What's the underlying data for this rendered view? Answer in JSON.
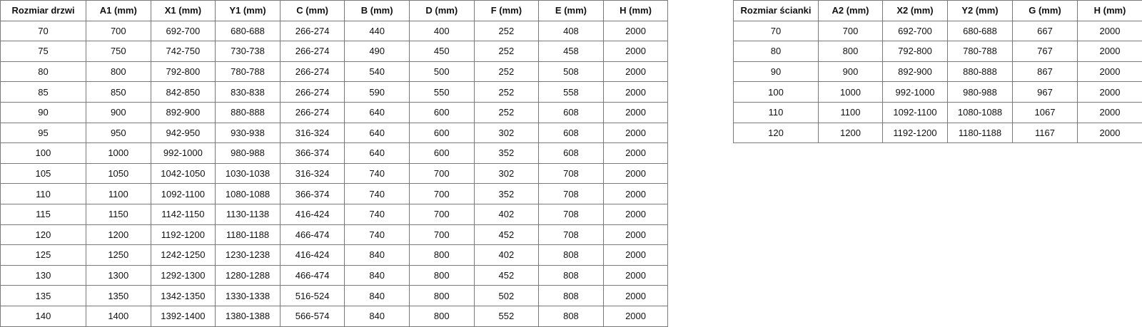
{
  "doors_table": {
    "headers": [
      "Rozmiar drzwi",
      "A1 (mm)",
      "X1 (mm)",
      "Y1 (mm)",
      "C (mm)",
      "B (mm)",
      "D (mm)",
      "F (mm)",
      "E (mm)",
      "H (mm)"
    ],
    "rows": [
      [
        "70",
        "700",
        "692-700",
        "680-688",
        "266-274",
        "440",
        "400",
        "252",
        "408",
        "2000"
      ],
      [
        "75",
        "750",
        "742-750",
        "730-738",
        "266-274",
        "490",
        "450",
        "252",
        "458",
        "2000"
      ],
      [
        "80",
        "800",
        "792-800",
        "780-788",
        "266-274",
        "540",
        "500",
        "252",
        "508",
        "2000"
      ],
      [
        "85",
        "850",
        "842-850",
        "830-838",
        "266-274",
        "590",
        "550",
        "252",
        "558",
        "2000"
      ],
      [
        "90",
        "900",
        "892-900",
        "880-888",
        "266-274",
        "640",
        "600",
        "252",
        "608",
        "2000"
      ],
      [
        "95",
        "950",
        "942-950",
        "930-938",
        "316-324",
        "640",
        "600",
        "302",
        "608",
        "2000"
      ],
      [
        "100",
        "1000",
        "992-1000",
        "980-988",
        "366-374",
        "640",
        "600",
        "352",
        "608",
        "2000"
      ],
      [
        "105",
        "1050",
        "1042-1050",
        "1030-1038",
        "316-324",
        "740",
        "700",
        "302",
        "708",
        "2000"
      ],
      [
        "110",
        "1100",
        "1092-1100",
        "1080-1088",
        "366-374",
        "740",
        "700",
        "352",
        "708",
        "2000"
      ],
      [
        "115",
        "1150",
        "1142-1150",
        "1130-1138",
        "416-424",
        "740",
        "700",
        "402",
        "708",
        "2000"
      ],
      [
        "120",
        "1200",
        "1192-1200",
        "1180-1188",
        "466-474",
        "740",
        "700",
        "452",
        "708",
        "2000"
      ],
      [
        "125",
        "1250",
        "1242-1250",
        "1230-1238",
        "416-424",
        "840",
        "800",
        "402",
        "808",
        "2000"
      ],
      [
        "130",
        "1300",
        "1292-1300",
        "1280-1288",
        "466-474",
        "840",
        "800",
        "452",
        "808",
        "2000"
      ],
      [
        "135",
        "1350",
        "1342-1350",
        "1330-1338",
        "516-524",
        "840",
        "800",
        "502",
        "808",
        "2000"
      ],
      [
        "140",
        "1400",
        "1392-1400",
        "1380-1388",
        "566-574",
        "840",
        "800",
        "552",
        "808",
        "2000"
      ]
    ]
  },
  "wall_table": {
    "headers": [
      "Rozmiar ścianki",
      "A2 (mm)",
      "X2 (mm)",
      "Y2 (mm)",
      "G (mm)",
      "H (mm)"
    ],
    "rows": [
      [
        "70",
        "700",
        "692-700",
        "680-688",
        "667",
        "2000"
      ],
      [
        "80",
        "800",
        "792-800",
        "780-788",
        "767",
        "2000"
      ],
      [
        "90",
        "900",
        "892-900",
        "880-888",
        "867",
        "2000"
      ],
      [
        "100",
        "1000",
        "992-1000",
        "980-988",
        "967",
        "2000"
      ],
      [
        "110",
        "1100",
        "1092-1100",
        "1080-1088",
        "1067",
        "2000"
      ],
      [
        "120",
        "1200",
        "1192-1200",
        "1180-1188",
        "1167",
        "2000"
      ]
    ]
  }
}
